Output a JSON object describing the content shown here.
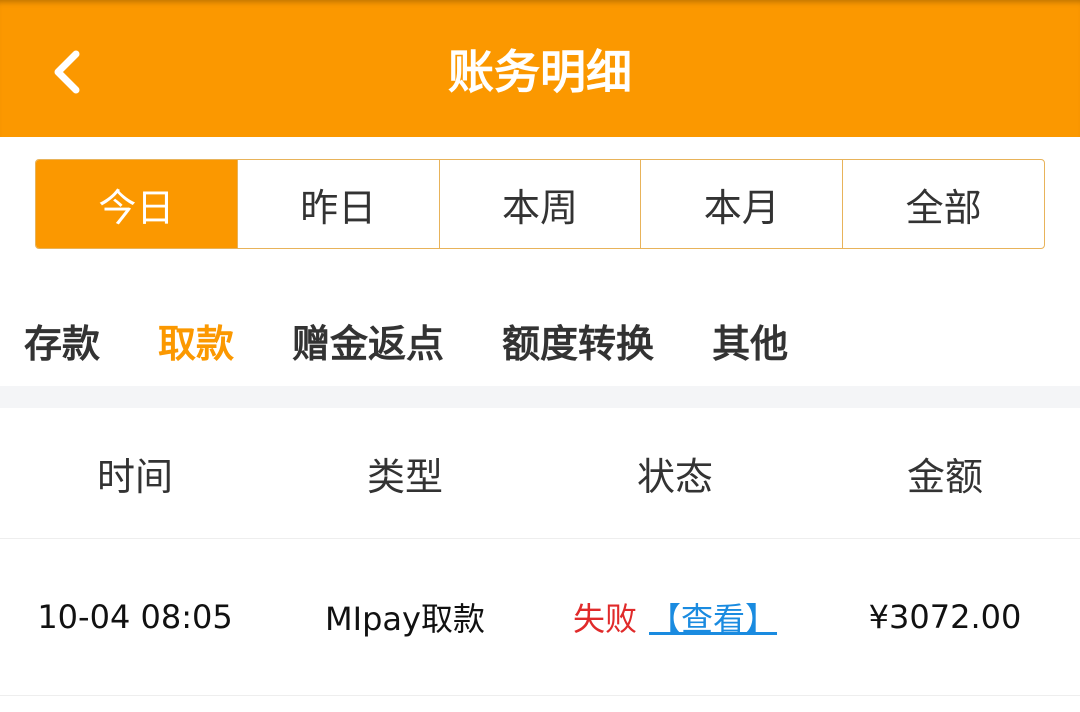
{
  "header": {
    "title": "账务明细",
    "back_icon": "chevron-left-icon"
  },
  "date_tabs": [
    {
      "label": "今日",
      "active": true
    },
    {
      "label": "昨日"
    },
    {
      "label": "本周"
    },
    {
      "label": "本月"
    },
    {
      "label": "全部"
    }
  ],
  "category_tabs": [
    {
      "label": "存款"
    },
    {
      "label": "取款",
      "active": true
    },
    {
      "label": "赠金返点"
    },
    {
      "label": "额度转换"
    },
    {
      "label": "其他"
    }
  ],
  "table": {
    "headers": [
      "时间",
      "类型",
      "状态",
      "金额"
    ],
    "rows": [
      {
        "time": "10-04 08:05",
        "type": "MIpay取款",
        "status": "失败",
        "action": "【查看】",
        "amount": "¥3072.00"
      }
    ]
  },
  "colors": {
    "accent": "#fb9800",
    "fail": "#e02a2a",
    "link": "#1a8be0"
  }
}
